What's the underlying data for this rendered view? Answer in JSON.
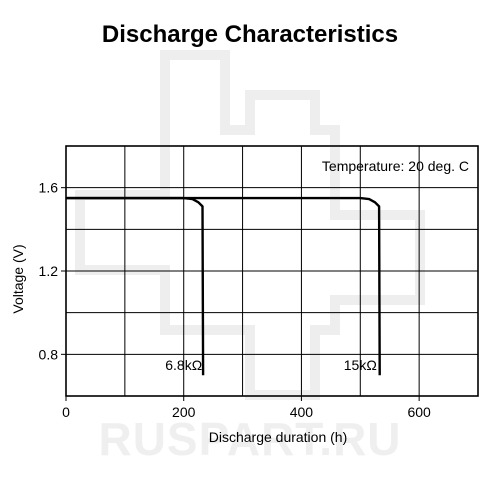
{
  "watermark": "RUSPART.RU",
  "chart_data": {
    "type": "line",
    "title": "Discharge Characteristics",
    "xlabel": "Discharge duration (h)",
    "ylabel": "Voltage (V)",
    "xlim": [
      0,
      700
    ],
    "ylim": [
      0.6,
      1.8
    ],
    "xticks": [
      0,
      200,
      400,
      600
    ],
    "xtick_labels": [
      "0",
      "200",
      "400",
      "600"
    ],
    "yticks": [
      0.8,
      1.2,
      1.6
    ],
    "ytick_labels": [
      "0.8",
      "1.2",
      "1.6"
    ],
    "grid": true,
    "annotation": "Temperature: 20 deg. C",
    "series": [
      {
        "name": "6.8kΩ",
        "x": [
          0,
          200,
          215,
          225,
          232,
          233
        ],
        "y": [
          1.55,
          1.55,
          1.545,
          1.53,
          1.51,
          0.7
        ]
      },
      {
        "name": "15kΩ",
        "x": [
          0,
          500,
          515,
          525,
          532,
          533
        ],
        "y": [
          1.55,
          1.55,
          1.545,
          1.53,
          1.51,
          0.7
        ]
      }
    ],
    "series_label_anchor": [
      {
        "x": 200,
        "y": 0.72
      },
      {
        "x": 500,
        "y": 0.72
      }
    ],
    "line_color": "#000000"
  }
}
